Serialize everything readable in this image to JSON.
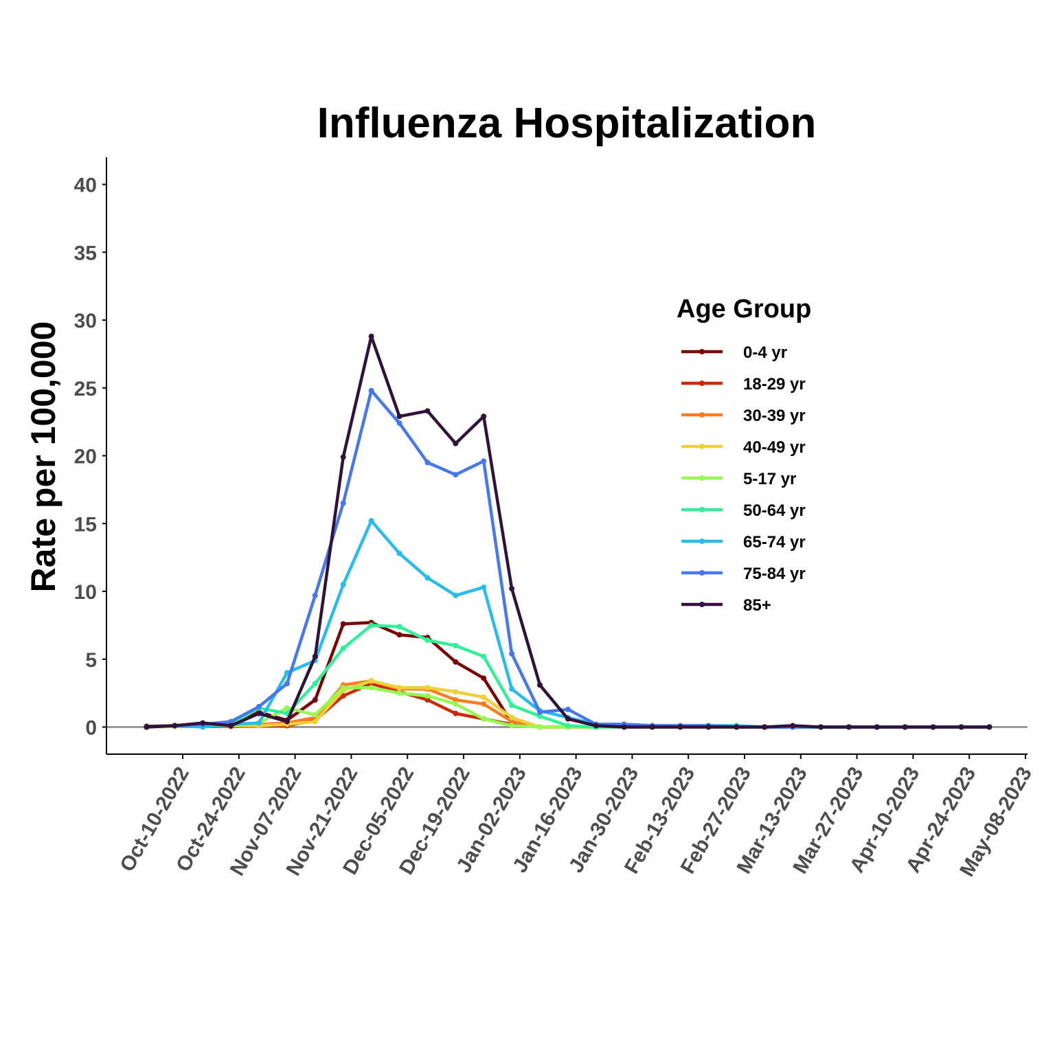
{
  "chart_data": {
    "type": "line",
    "title": "Influenza Hospitalization",
    "ylabel": "Rate per 100,000",
    "xlabel": "",
    "ylim": [
      -2,
      42
    ],
    "yticks": [
      0,
      5,
      10,
      15,
      20,
      25,
      30,
      35,
      40
    ],
    "xlim": [
      "2022-09-21",
      "2023-05-08"
    ],
    "x_tick_labels": [
      "Oct-10-2022",
      "Oct-24-2022",
      "Nov-07-2022",
      "Nov-21-2022",
      "Dec-05-2022",
      "Dec-19-2022",
      "Jan-02-2023",
      "Jan-16-2023",
      "Jan-30-2023",
      "Feb-13-2023",
      "Feb-27-2023",
      "Mar-13-2023",
      "Mar-27-2023",
      "Apr-10-2023",
      "Apr-24-2023",
      "May-08-2023"
    ],
    "x_tick_dates": [
      "2022-10-10",
      "2022-10-24",
      "2022-11-07",
      "2022-11-21",
      "2022-12-05",
      "2022-12-19",
      "2023-01-02",
      "2023-01-16",
      "2023-01-30",
      "2023-02-13",
      "2023-02-27",
      "2023-03-13",
      "2023-03-27",
      "2023-04-10",
      "2023-04-24",
      "2023-05-08"
    ],
    "legend_title": "Age Group",
    "legend_position": "right",
    "grid": false,
    "reference_line_y": 0,
    "x": [
      "2022-10-01",
      "2022-10-08",
      "2022-10-15",
      "2022-10-22",
      "2022-10-29",
      "2022-11-05",
      "2022-11-12",
      "2022-11-19",
      "2022-11-26",
      "2022-12-03",
      "2022-12-10",
      "2022-12-17",
      "2022-12-24",
      "2022-12-31",
      "2023-01-07",
      "2023-01-14",
      "2023-01-21",
      "2023-01-28",
      "2023-02-04",
      "2023-02-11",
      "2023-02-18",
      "2023-02-25",
      "2023-03-04",
      "2023-03-11",
      "2023-03-18",
      "2023-03-25",
      "2023-04-01",
      "2023-04-08",
      "2023-04-15",
      "2023-04-22",
      "2023-04-29"
    ],
    "series": [
      {
        "name": "0-4 yr",
        "color": "#7a0403",
        "values": [
          0.05,
          0.1,
          0.2,
          0.1,
          1.1,
          0.5,
          2.0,
          7.6,
          7.7,
          6.8,
          6.6,
          4.8,
          3.6,
          0.3,
          0.0,
          0.0,
          0.0,
          0.0,
          0.0,
          0.0,
          0.0,
          0.0,
          0.0,
          0.0,
          0.0,
          0.0,
          0.0,
          0.0,
          0.0,
          0.0,
          0.0
        ]
      },
      {
        "name": "18-29 yr",
        "color": "#cb2a04",
        "values": [
          0.0,
          0.05,
          0.05,
          0.05,
          0.1,
          0.1,
          0.5,
          2.3,
          3.2,
          2.6,
          2.0,
          1.0,
          0.6,
          0.2,
          0.0,
          0.0,
          0.0,
          0.0,
          0.0,
          0.0,
          0.0,
          0.0,
          0.0,
          0.0,
          0.0,
          0.0,
          0.0,
          0.0,
          0.0,
          0.0,
          0.0
        ]
      },
      {
        "name": "30-39 yr",
        "color": "#fe7d21",
        "values": [
          0.0,
          0.05,
          0.1,
          0.1,
          0.2,
          0.3,
          0.7,
          3.1,
          3.4,
          2.8,
          2.8,
          2.0,
          1.7,
          0.4,
          0.0,
          0.0,
          0.0,
          0.0,
          0.0,
          0.0,
          0.0,
          0.0,
          0.0,
          0.0,
          0.0,
          0.0,
          0.0,
          0.0,
          0.0,
          0.0,
          0.0
        ]
      },
      {
        "name": "40-49 yr",
        "color": "#edd03a",
        "values": [
          0.0,
          0.05,
          0.1,
          0.1,
          0.1,
          0.2,
          0.4,
          2.7,
          3.4,
          2.9,
          2.9,
          2.6,
          2.2,
          0.7,
          0.0,
          0.0,
          0.0,
          0.0,
          0.0,
          0.0,
          0.0,
          0.0,
          0.0,
          0.0,
          0.0,
          0.0,
          0.0,
          0.0,
          0.0,
          0.0,
          0.0
        ]
      },
      {
        "name": "5-17 yr",
        "color": "#95fb51",
        "values": [
          0.0,
          0.05,
          0.1,
          0.1,
          0.3,
          1.4,
          0.9,
          2.9,
          2.9,
          2.5,
          2.3,
          1.7,
          0.6,
          0.1,
          0.0,
          0.0,
          0.0,
          0.0,
          0.0,
          0.0,
          0.0,
          0.0,
          0.0,
          0.0,
          0.0,
          0.0,
          0.0,
          0.0,
          0.0,
          0.0,
          0.0
        ]
      },
      {
        "name": "50-64 yr",
        "color": "#31f198",
        "values": [
          0.0,
          0.1,
          0.1,
          0.2,
          1.4,
          1.0,
          3.2,
          5.8,
          7.5,
          7.4,
          6.4,
          6.0,
          5.2,
          1.6,
          0.8,
          0.1,
          0.0,
          0.0,
          0.0,
          0.0,
          0.1,
          0.0,
          0.0,
          0.0,
          0.0,
          0.0,
          0.0,
          0.0,
          0.0,
          0.0,
          0.0
        ]
      },
      {
        "name": "65-74 yr",
        "color": "#28bceb",
        "values": [
          0.0,
          0.1,
          0.0,
          0.2,
          0.3,
          4.0,
          4.9,
          10.5,
          15.2,
          12.8,
          11.0,
          9.7,
          10.3,
          2.8,
          1.2,
          0.7,
          0.2,
          0.2,
          0.1,
          0.1,
          0.1,
          0.1,
          0.0,
          0.0,
          0.0,
          0.0,
          0.0,
          0.0,
          0.0,
          0.0,
          0.0
        ]
      },
      {
        "name": "75-84 yr",
        "color": "#4777ef",
        "values": [
          0.0,
          0.1,
          0.2,
          0.4,
          1.5,
          3.2,
          9.7,
          16.5,
          24.8,
          22.4,
          19.5,
          18.6,
          19.6,
          5.4,
          1.1,
          1.3,
          0.2,
          0.2,
          0.1,
          0.1,
          0.1,
          0.0,
          0.0,
          0.0,
          0.0,
          0.0,
          0.0,
          0.0,
          0.0,
          0.0,
          0.0
        ]
      },
      {
        "name": "85+",
        "color": "#30123b",
        "values": [
          0.0,
          0.1,
          0.3,
          0.1,
          1.0,
          0.4,
          5.2,
          19.9,
          28.8,
          22.9,
          23.3,
          20.9,
          22.9,
          10.2,
          3.1,
          0.6,
          0.1,
          0.0,
          0.0,
          0.0,
          0.0,
          0.0,
          0.0,
          0.1,
          0.0,
          0.0,
          0.0,
          0.0,
          0.0,
          0.0,
          0.0
        ]
      }
    ]
  }
}
